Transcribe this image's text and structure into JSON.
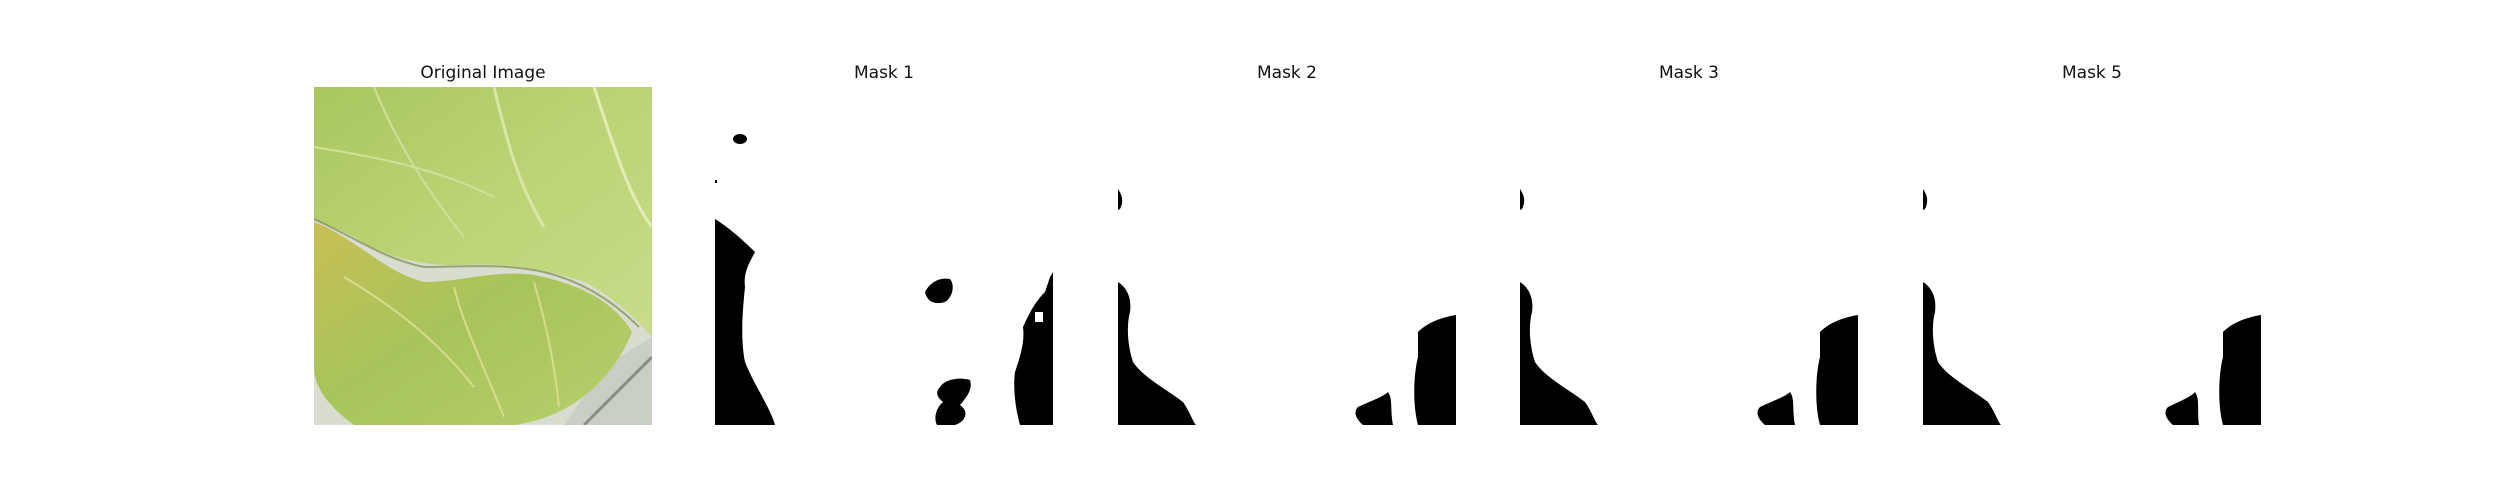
{
  "figure": {
    "panels": [
      {
        "title": "Original Image",
        "content": "leaf-photo"
      },
      {
        "title": "Mask 1",
        "content": "binary-mask"
      },
      {
        "title": "Mask 2",
        "content": "binary-mask"
      },
      {
        "title": "Mask 3",
        "content": "binary-mask"
      },
      {
        "title": "Mask 5",
        "content": "binary-mask"
      }
    ],
    "colors": {
      "background": "#ffffff",
      "mask_foreground": "#000000",
      "mask_background": "#ffffff",
      "leaf_light": "#b9d173",
      "leaf_mid": "#a6c45d",
      "leaf_yellow": "#c9c564"
    }
  }
}
